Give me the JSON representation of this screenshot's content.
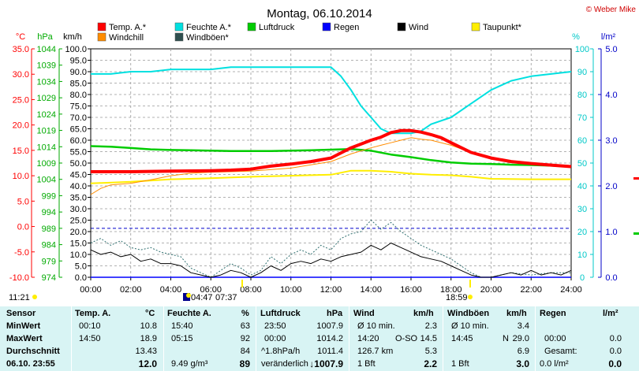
{
  "chart_data": {
    "type": "line",
    "title": "Montag, 06.10.2014",
    "copyright": "© Weber Mike",
    "x_ticks": [
      "00:00",
      "02:00",
      "04:00",
      "06:00",
      "08:00",
      "10:00",
      "12:00",
      "14:00",
      "16:00",
      "18:00",
      "20:00",
      "22:00",
      "24:00"
    ],
    "xlim": [
      0,
      24
    ],
    "axes": {
      "temp": {
        "unit": "°C",
        "ticks": [
          "35.0",
          "30.0",
          "25.0",
          "20.0",
          "15.0",
          "10.0",
          "5.0",
          "0.0",
          "-5.0",
          "-10.0"
        ],
        "range": [
          -10,
          35
        ],
        "color": "#ff0000"
      },
      "pressure": {
        "unit": "hPa",
        "ticks": [
          "1044",
          "1039",
          "1034",
          "1029",
          "1024",
          "1019",
          "1014",
          "1009",
          "1004",
          "999",
          "994",
          "989",
          "984",
          "979",
          "974"
        ],
        "range": [
          974,
          1044
        ],
        "color": "#00aa00"
      },
      "wind": {
        "unit": "km/h",
        "ticks": [
          "100.0",
          "95.0",
          "90.0",
          "85.0",
          "80.0",
          "75.0",
          "70.0",
          "65.0",
          "60.0",
          "55.0",
          "50.0",
          "45.0",
          "40.0",
          "35.0",
          "30.0",
          "25.0",
          "20.0",
          "15.0",
          "10.0",
          "5.0",
          "0.0"
        ],
        "range": [
          0,
          100
        ],
        "color": "#000000"
      },
      "humidity": {
        "unit": "%",
        "ticks": [
          "100",
          "90",
          "80",
          "70",
          "60",
          "50",
          "40",
          "30",
          "20",
          "10",
          "0"
        ],
        "range": [
          0,
          100
        ],
        "color": "#00c8c8"
      },
      "rain": {
        "unit": "l/m²",
        "ticks": [
          "5.0",
          "4.0",
          "3.0",
          "2.0",
          "1.0",
          "0.0"
        ],
        "range": [
          0,
          5
        ],
        "color": "#0000c8"
      }
    },
    "legend": [
      {
        "name": "Temp. A.*",
        "color": "#ff0000"
      },
      {
        "name": "Feuchte A.*",
        "color": "#00e0e0"
      },
      {
        "name": "Luftdruck",
        "color": "#00cc00"
      },
      {
        "name": "Regen",
        "color": "#0000ff"
      },
      {
        "name": "Wind",
        "color": "#000000"
      },
      {
        "name": "Taupunkt*",
        "color": "#ffee00"
      },
      {
        "name": "Windchill",
        "color": "#ff8c00"
      },
      {
        "name": "Windböen*",
        "color": "#2f4f4f"
      }
    ],
    "series": {
      "temperature": {
        "x": [
          0,
          2,
          4,
          6,
          7,
          8,
          9,
          10,
          11,
          12,
          12.5,
          13,
          14,
          14.5,
          15,
          15.5,
          16,
          16.5,
          17,
          17.5,
          18,
          19,
          20,
          21,
          22,
          23,
          24
        ],
        "y": [
          10.8,
          10.8,
          10.9,
          11.0,
          11.1,
          11.3,
          11.9,
          12.3,
          12.8,
          13.5,
          14.5,
          15.5,
          17.0,
          17.6,
          18.5,
          18.9,
          18.9,
          18.6,
          18.1,
          17.5,
          16.5,
          14.6,
          13.5,
          12.8,
          12.4,
          12.1,
          11.8
        ]
      },
      "humidity": {
        "x": [
          0,
          1,
          2,
          3,
          4,
          5,
          6,
          7,
          8,
          9,
          10,
          11,
          12,
          12.5,
          13,
          13.5,
          14,
          14.5,
          15,
          15.5,
          16,
          16.5,
          17,
          18,
          19,
          20,
          21,
          22,
          23,
          24
        ],
        "y": [
          89,
          89,
          90,
          90,
          91,
          91,
          91,
          92,
          92,
          92,
          92,
          92,
          92,
          88,
          82,
          75,
          70,
          65,
          63,
          63,
          63,
          64,
          67,
          70,
          76,
          82,
          86,
          88,
          89,
          90
        ]
      },
      "pressure": {
        "x": [
          0,
          1,
          2,
          3,
          4,
          5,
          6,
          7,
          8,
          9,
          10,
          11,
          12,
          13,
          14,
          15,
          16,
          17,
          18,
          19,
          20,
          21,
          22,
          23,
          24
        ],
        "y": [
          1014.2,
          1014.0,
          1013.6,
          1013.2,
          1013.0,
          1012.9,
          1012.8,
          1012.7,
          1012.7,
          1012.7,
          1012.8,
          1012.9,
          1013.1,
          1013.3,
          1012.8,
          1011.6,
          1010.8,
          1009.9,
          1009.2,
          1008.8,
          1008.7,
          1008.5,
          1008.4,
          1008.2,
          1007.9
        ]
      },
      "dewpoint": {
        "x": [
          0,
          2,
          4,
          6,
          8,
          10,
          12,
          13,
          14,
          15,
          16,
          17,
          18,
          19,
          20,
          22,
          24
        ],
        "y": [
          8.5,
          8.8,
          9.3,
          9.5,
          9.8,
          10.0,
          10.2,
          11.0,
          11.0,
          10.8,
          10.4,
          10.2,
          10.1,
          9.8,
          9.4,
          9.3,
          9.3
        ]
      },
      "windchill": {
        "x": [
          0,
          0.5,
          1,
          2,
          3,
          4,
          5,
          6,
          8,
          10,
          12,
          13,
          14,
          14.5,
          15,
          15.5,
          16,
          16.5,
          17,
          18,
          19,
          20,
          22,
          24
        ],
        "y": [
          6.3,
          7.5,
          8.2,
          8.5,
          9.2,
          10.0,
          10.5,
          10.7,
          10.9,
          11.5,
          12.8,
          14.3,
          15.5,
          16.0,
          16.5,
          17.0,
          17.5,
          17.2,
          17.0,
          16.0,
          14.6,
          13.5,
          12.4,
          11.8
        ]
      },
      "wind": {
        "x": [
          0,
          0.5,
          1,
          1.5,
          2,
          2.5,
          3,
          3.5,
          4,
          4.5,
          5,
          5.5,
          6,
          6.5,
          7,
          7.5,
          8,
          8.5,
          9,
          9.5,
          10,
          10.5,
          11,
          11.5,
          12,
          12.5,
          13,
          13.5,
          14,
          14.5,
          15,
          15.5,
          16,
          16.5,
          17,
          17.5,
          18,
          18.5,
          19,
          19.5,
          20,
          20.5,
          21,
          21.5,
          22,
          22.5,
          23,
          23.5,
          24
        ],
        "y": [
          12,
          10,
          11,
          9,
          10,
          7,
          8,
          6,
          6,
          5,
          2,
          1,
          0,
          1,
          3,
          2,
          0,
          2,
          5,
          3,
          6,
          7,
          6,
          8,
          7,
          9,
          10,
          11,
          14,
          12,
          15,
          13,
          11,
          9,
          8,
          7,
          5,
          3,
          1,
          0,
          0,
          1,
          2,
          1,
          3,
          1,
          2,
          1,
          3
        ]
      },
      "gusts": {
        "x": [
          0,
          0.5,
          1,
          1.5,
          2,
          2.5,
          3,
          3.5,
          4,
          4.5,
          5,
          5.5,
          6,
          6.5,
          7,
          7.5,
          8,
          8.5,
          9,
          9.5,
          10,
          10.5,
          11,
          11.5,
          12,
          12.5,
          13,
          13.5,
          14,
          14.5,
          15,
          15.5,
          16,
          16.5,
          17,
          17.5,
          18,
          18.5,
          19,
          19.5,
          20,
          20.5,
          21,
          22,
          23,
          24
        ],
        "y": [
          15,
          17,
          14,
          16,
          13,
          12,
          13,
          11,
          10,
          9,
          4,
          2,
          0,
          3,
          6,
          4,
          1,
          3,
          9,
          6,
          10,
          12,
          10,
          14,
          12,
          17,
          19,
          20,
          25,
          21,
          24,
          20,
          17,
          14,
          12,
          10,
          8,
          5,
          2,
          0,
          0,
          1,
          2,
          1,
          2,
          2
        ]
      },
      "rain": {
        "x": [
          0,
          24
        ],
        "y": [
          0,
          0
        ]
      }
    },
    "reference_line_pressure": 989,
    "sun_times": {
      "sunrise_marker": "04:47",
      "sunrise": "07:37",
      "sunset": "18:59",
      "left_time": "11:21"
    }
  },
  "stats": {
    "row_labels": [
      "Sensor",
      "MinWert",
      "MaxWert",
      "Durchschnitt",
      "06.10. 23:55"
    ],
    "temp": {
      "head": "Temp. A.",
      "unit": "°C",
      "min_time": "00:10",
      "min": "10.8",
      "max_time": "14:50",
      "max": "18.9",
      "avg": "13.43",
      "current": "12.0"
    },
    "humidity": {
      "head": "Feuchte A.",
      "unit": "%",
      "min_time": "15:40",
      "min": "63",
      "max_time": "05:15",
      "max": "92",
      "avg": "84",
      "abs": "9.49 g/m³",
      "current": "89"
    },
    "pressure": {
      "head": "Luftdruck",
      "unit": "hPa",
      "min_time": "23:50",
      "min": "1007.9",
      "max_time": "00:00",
      "max": "1014.2",
      "trend": "^1.8hPa/h",
      "avg": "1011.4",
      "state": "veränderlich",
      "current": "↓1007.9"
    },
    "wind": {
      "head": "Wind",
      "unit": "km/h",
      "min_label": "Ø 10 min.",
      "min": "2.3",
      "max_time": "14:20",
      "max_dir": "O-SO",
      "max": "14.5",
      "dist": "126.7 km",
      "avg": "5.3",
      "bft": "1 Bft",
      "current": "2.2"
    },
    "gusts": {
      "head": "Windböen",
      "unit": "km/h",
      "min_label": "Ø 10 min.",
      "min": "3.4",
      "max_time": "14:45",
      "max_dir": "N",
      "max": "29.0",
      "avg": "6.9",
      "bft": "1 Bft",
      "current": "3.0"
    },
    "rain": {
      "head": "Regen",
      "unit": "l/m²",
      "max_time": "00:00",
      "max": "0.0",
      "total_label": "Gesamt:",
      "total": "0.0",
      "current_rate": "0.0 l/m²",
      "current": "0.0"
    }
  }
}
